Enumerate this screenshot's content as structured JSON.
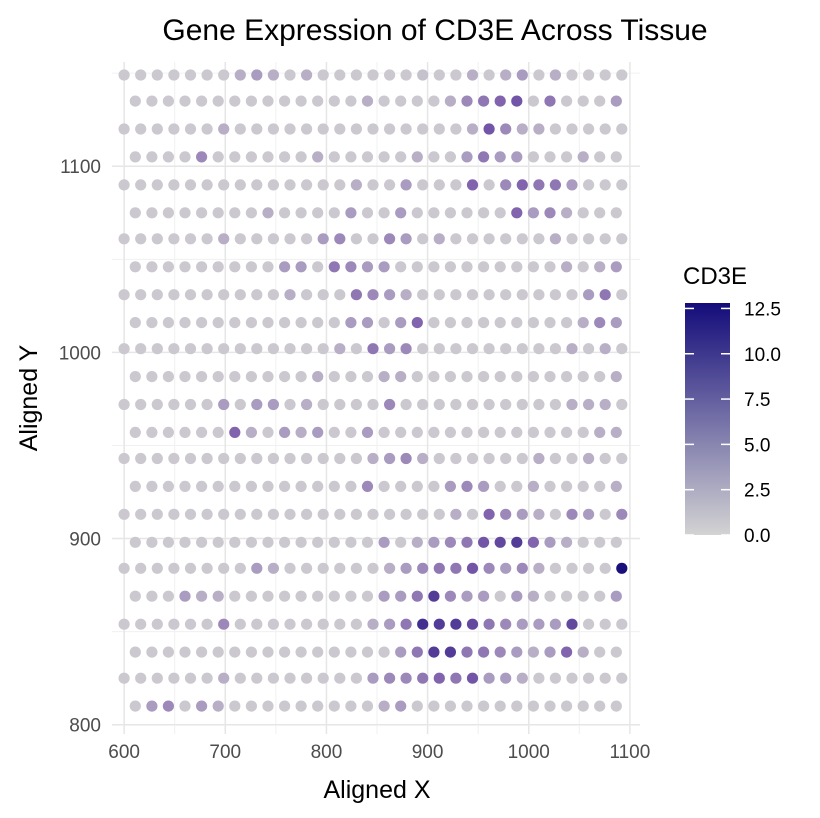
{
  "chart_data": {
    "type": "scatter",
    "title": "Gene Expression of CD3E Across Tissue",
    "xlabel": "Aligned X",
    "ylabel": "Aligned Y",
    "xlim": [
      588,
      1110
    ],
    "ylim": [
      795,
      1156
    ],
    "xticks": [
      600,
      700,
      800,
      900,
      1000,
      1100
    ],
    "yticks": [
      800,
      900,
      1000,
      1100
    ],
    "xtick_labels": [
      "600",
      "700",
      "800",
      "900",
      "1000",
      "1100"
    ],
    "ytick_labels": [
      "800",
      "900",
      "1000",
      "1100"
    ],
    "grid": true,
    "legend": {
      "title": "CD3E",
      "position": "right",
      "min": 0,
      "max": 12.8,
      "ticks": [
        0,
        2.5,
        5,
        7.5,
        10,
        12.5
      ],
      "tick_labels": [
        "0.0",
        "2.5",
        "5.0",
        "7.5",
        "10.0",
        "12.5"
      ],
      "color_low": "#d3d3d3",
      "color_high": "#140c7a"
    },
    "layout": {
      "rows": [
        1149,
        1135,
        1120,
        1105,
        1090,
        1075,
        1061,
        1046,
        1031,
        1016,
        1002,
        987,
        972,
        957,
        943,
        928,
        913,
        898,
        884,
        869,
        854,
        839,
        825,
        810
      ],
      "x_start_even": 600,
      "x_start_odd": 611,
      "x_step": 16.4,
      "count": 31
    },
    "highlights": [
      {
        "x": 736,
        "y": 1149,
        "v": 3
      },
      {
        "x": 718,
        "y": 1149,
        "v": 2
      },
      {
        "x": 752,
        "y": 1149,
        "v": 2
      },
      {
        "x": 785,
        "y": 1149,
        "v": 2
      },
      {
        "x": 900,
        "y": 1149,
        "v": 1
      },
      {
        "x": 948,
        "y": 1149,
        "v": 2
      },
      {
        "x": 981,
        "y": 1149,
        "v": 2
      },
      {
        "x": 997,
        "y": 1149,
        "v": 3
      },
      {
        "x": 1030,
        "y": 1149,
        "v": 2
      },
      {
        "x": 940,
        "y": 1135,
        "v": 4
      },
      {
        "x": 956,
        "y": 1135,
        "v": 5
      },
      {
        "x": 973,
        "y": 1135,
        "v": 6
      },
      {
        "x": 989,
        "y": 1135,
        "v": 7
      },
      {
        "x": 1022,
        "y": 1135,
        "v": 5
      },
      {
        "x": 1088,
        "y": 1135,
        "v": 3
      },
      {
        "x": 924,
        "y": 1135,
        "v": 2
      },
      {
        "x": 841,
        "y": 1135,
        "v": 2
      },
      {
        "x": 957,
        "y": 1120,
        "v": 7
      },
      {
        "x": 973,
        "y": 1120,
        "v": 4
      },
      {
        "x": 941,
        "y": 1120,
        "v": 2
      },
      {
        "x": 990,
        "y": 1120,
        "v": 2
      },
      {
        "x": 1006,
        "y": 1120,
        "v": 2
      },
      {
        "x": 693,
        "y": 1120,
        "v": 2
      },
      {
        "x": 676,
        "y": 1105,
        "v": 4
      },
      {
        "x": 948,
        "y": 1105,
        "v": 5
      },
      {
        "x": 932,
        "y": 1105,
        "v": 3
      },
      {
        "x": 965,
        "y": 1105,
        "v": 3
      },
      {
        "x": 981,
        "y": 1105,
        "v": 3
      },
      {
        "x": 1047,
        "y": 1105,
        "v": 2
      },
      {
        "x": 785,
        "y": 1105,
        "v": 2
      },
      {
        "x": 882,
        "y": 1105,
        "v": 2
      },
      {
        "x": 940,
        "y": 1090,
        "v": 6
      },
      {
        "x": 989,
        "y": 1090,
        "v": 6
      },
      {
        "x": 1006,
        "y": 1090,
        "v": 5
      },
      {
        "x": 1022,
        "y": 1090,
        "v": 5
      },
      {
        "x": 973,
        "y": 1090,
        "v": 4
      },
      {
        "x": 874,
        "y": 1090,
        "v": 3
      },
      {
        "x": 1038,
        "y": 1090,
        "v": 3
      },
      {
        "x": 825,
        "y": 1090,
        "v": 2
      },
      {
        "x": 981,
        "y": 1075,
        "v": 6
      },
      {
        "x": 1014,
        "y": 1075,
        "v": 4
      },
      {
        "x": 998,
        "y": 1075,
        "v": 3
      },
      {
        "x": 817,
        "y": 1075,
        "v": 3
      },
      {
        "x": 866,
        "y": 1075,
        "v": 3
      },
      {
        "x": 735,
        "y": 1075,
        "v": 2
      },
      {
        "x": 1030,
        "y": 1075,
        "v": 2
      },
      {
        "x": 817,
        "y": 1061,
        "v": 4
      },
      {
        "x": 866,
        "y": 1061,
        "v": 4
      },
      {
        "x": 882,
        "y": 1061,
        "v": 3
      },
      {
        "x": 800,
        "y": 1061,
        "v": 3
      },
      {
        "x": 915,
        "y": 1061,
        "v": 2
      },
      {
        "x": 1031,
        "y": 1061,
        "v": 2
      },
      {
        "x": 702,
        "y": 1061,
        "v": 2
      },
      {
        "x": 808,
        "y": 1046,
        "v": 5
      },
      {
        "x": 825,
        "y": 1046,
        "v": 4
      },
      {
        "x": 759,
        "y": 1046,
        "v": 3
      },
      {
        "x": 776,
        "y": 1046,
        "v": 3
      },
      {
        "x": 842,
        "y": 1046,
        "v": 3
      },
      {
        "x": 858,
        "y": 1046,
        "v": 3
      },
      {
        "x": 1088,
        "y": 1046,
        "v": 3
      },
      {
        "x": 1039,
        "y": 1046,
        "v": 2
      },
      {
        "x": 1071,
        "y": 1046,
        "v": 2
      },
      {
        "x": 825,
        "y": 1031,
        "v": 5
      },
      {
        "x": 1072,
        "y": 1031,
        "v": 5
      },
      {
        "x": 842,
        "y": 1031,
        "v": 4
      },
      {
        "x": 858,
        "y": 1031,
        "v": 3
      },
      {
        "x": 759,
        "y": 1031,
        "v": 2
      },
      {
        "x": 874,
        "y": 1031,
        "v": 2
      },
      {
        "x": 1056,
        "y": 1031,
        "v": 3
      },
      {
        "x": 883,
        "y": 1016,
        "v": 6
      },
      {
        "x": 1071,
        "y": 1016,
        "v": 4
      },
      {
        "x": 1088,
        "y": 1016,
        "v": 3
      },
      {
        "x": 825,
        "y": 1016,
        "v": 3
      },
      {
        "x": 842,
        "y": 1016,
        "v": 3
      },
      {
        "x": 866,
        "y": 1016,
        "v": 3
      },
      {
        "x": 1055,
        "y": 1016,
        "v": 2
      },
      {
        "x": 850,
        "y": 1002,
        "v": 5
      },
      {
        "x": 883,
        "y": 1002,
        "v": 4
      },
      {
        "x": 867,
        "y": 1002,
        "v": 3
      },
      {
        "x": 817,
        "y": 1002,
        "v": 2
      },
      {
        "x": 1072,
        "y": 1002,
        "v": 2
      },
      {
        "x": 1039,
        "y": 1002,
        "v": 2
      },
      {
        "x": 858,
        "y": 987,
        "v": 2
      },
      {
        "x": 874,
        "y": 987,
        "v": 2
      },
      {
        "x": 793,
        "y": 987,
        "v": 2
      },
      {
        "x": 1088,
        "y": 987,
        "v": 2
      },
      {
        "x": 702,
        "y": 972,
        "v": 3
      },
      {
        "x": 735,
        "y": 972,
        "v": 3
      },
      {
        "x": 751,
        "y": 972,
        "v": 3
      },
      {
        "x": 867,
        "y": 972,
        "v": 4
      },
      {
        "x": 785,
        "y": 972,
        "v": 2
      },
      {
        "x": 1048,
        "y": 972,
        "v": 2
      },
      {
        "x": 1064,
        "y": 972,
        "v": 2
      },
      {
        "x": 1081,
        "y": 972,
        "v": 2
      },
      {
        "x": 711,
        "y": 957,
        "v": 6
      },
      {
        "x": 760,
        "y": 957,
        "v": 3
      },
      {
        "x": 793,
        "y": 957,
        "v": 3
      },
      {
        "x": 842,
        "y": 957,
        "v": 3
      },
      {
        "x": 727,
        "y": 957,
        "v": 2
      },
      {
        "x": 777,
        "y": 957,
        "v": 2
      },
      {
        "x": 1072,
        "y": 957,
        "v": 2
      },
      {
        "x": 1088,
        "y": 957,
        "v": 2
      },
      {
        "x": 883,
        "y": 943,
        "v": 4
      },
      {
        "x": 866,
        "y": 943,
        "v": 3
      },
      {
        "x": 900,
        "y": 943,
        "v": 2
      },
      {
        "x": 850,
        "y": 943,
        "v": 2
      },
      {
        "x": 1014,
        "y": 943,
        "v": 2
      },
      {
        "x": 1064,
        "y": 943,
        "v": 2
      },
      {
        "x": 842,
        "y": 928,
        "v": 4
      },
      {
        "x": 941,
        "y": 928,
        "v": 4
      },
      {
        "x": 924,
        "y": 928,
        "v": 3
      },
      {
        "x": 957,
        "y": 928,
        "v": 3
      },
      {
        "x": 1006,
        "y": 928,
        "v": 2
      },
      {
        "x": 1089,
        "y": 928,
        "v": 2
      },
      {
        "x": 957,
        "y": 913,
        "v": 6
      },
      {
        "x": 973,
        "y": 913,
        "v": 4
      },
      {
        "x": 1039,
        "y": 913,
        "v": 4
      },
      {
        "x": 1055,
        "y": 913,
        "v": 3
      },
      {
        "x": 1088,
        "y": 913,
        "v": 4
      },
      {
        "x": 990,
        "y": 913,
        "v": 3
      },
      {
        "x": 1006,
        "y": 913,
        "v": 2
      },
      {
        "x": 924,
        "y": 913,
        "v": 2
      },
      {
        "x": 957,
        "y": 898,
        "v": 7
      },
      {
        "x": 973,
        "y": 898,
        "v": 8
      },
      {
        "x": 989,
        "y": 898,
        "v": 9
      },
      {
        "x": 1006,
        "y": 898,
        "v": 6
      },
      {
        "x": 940,
        "y": 898,
        "v": 5
      },
      {
        "x": 924,
        "y": 898,
        "v": 4
      },
      {
        "x": 907,
        "y": 898,
        "v": 3
      },
      {
        "x": 858,
        "y": 898,
        "v": 3
      },
      {
        "x": 891,
        "y": 898,
        "v": 2
      },
      {
        "x": 1022,
        "y": 898,
        "v": 3
      },
      {
        "x": 1039,
        "y": 898,
        "v": 2
      },
      {
        "x": 1088,
        "y": 884,
        "v": 12.5
      },
      {
        "x": 940,
        "y": 884,
        "v": 7
      },
      {
        "x": 907,
        "y": 884,
        "v": 5
      },
      {
        "x": 924,
        "y": 884,
        "v": 5
      },
      {
        "x": 891,
        "y": 884,
        "v": 4
      },
      {
        "x": 874,
        "y": 884,
        "v": 3
      },
      {
        "x": 957,
        "y": 884,
        "v": 4
      },
      {
        "x": 973,
        "y": 884,
        "v": 3
      },
      {
        "x": 989,
        "y": 884,
        "v": 4
      },
      {
        "x": 727,
        "y": 884,
        "v": 3
      },
      {
        "x": 743,
        "y": 884,
        "v": 2
      },
      {
        "x": 858,
        "y": 884,
        "v": 2
      },
      {
        "x": 1006,
        "y": 884,
        "v": 2
      },
      {
        "x": 900,
        "y": 869,
        "v": 9
      },
      {
        "x": 883,
        "y": 869,
        "v": 5
      },
      {
        "x": 916,
        "y": 869,
        "v": 4
      },
      {
        "x": 867,
        "y": 869,
        "v": 3
      },
      {
        "x": 850,
        "y": 869,
        "v": 3
      },
      {
        "x": 933,
        "y": 869,
        "v": 3
      },
      {
        "x": 949,
        "y": 869,
        "v": 3
      },
      {
        "x": 982,
        "y": 869,
        "v": 3
      },
      {
        "x": 998,
        "y": 869,
        "v": 2
      },
      {
        "x": 1081,
        "y": 869,
        "v": 3
      },
      {
        "x": 668,
        "y": 869,
        "v": 3
      },
      {
        "x": 684,
        "y": 869,
        "v": 2
      },
      {
        "x": 701,
        "y": 869,
        "v": 2
      },
      {
        "x": 891,
        "y": 854,
        "v": 10
      },
      {
        "x": 907,
        "y": 854,
        "v": 9
      },
      {
        "x": 924,
        "y": 854,
        "v": 9
      },
      {
        "x": 940,
        "y": 854,
        "v": 8
      },
      {
        "x": 874,
        "y": 854,
        "v": 5
      },
      {
        "x": 957,
        "y": 854,
        "v": 5
      },
      {
        "x": 973,
        "y": 854,
        "v": 4
      },
      {
        "x": 1039,
        "y": 854,
        "v": 8
      },
      {
        "x": 1022,
        "y": 854,
        "v": 3
      },
      {
        "x": 1006,
        "y": 854,
        "v": 3
      },
      {
        "x": 989,
        "y": 854,
        "v": 3
      },
      {
        "x": 858,
        "y": 854,
        "v": 3
      },
      {
        "x": 842,
        "y": 854,
        "v": 2
      },
      {
        "x": 694,
        "y": 854,
        "v": 4
      },
      {
        "x": 900,
        "y": 839,
        "v": 9
      },
      {
        "x": 916,
        "y": 839,
        "v": 9
      },
      {
        "x": 883,
        "y": 839,
        "v": 5
      },
      {
        "x": 933,
        "y": 839,
        "v": 5
      },
      {
        "x": 949,
        "y": 839,
        "v": 5
      },
      {
        "x": 867,
        "y": 839,
        "v": 3
      },
      {
        "x": 965,
        "y": 839,
        "v": 4
      },
      {
        "x": 982,
        "y": 839,
        "v": 3
      },
      {
        "x": 1031,
        "y": 839,
        "v": 6
      },
      {
        "x": 1014,
        "y": 839,
        "v": 3
      },
      {
        "x": 998,
        "y": 839,
        "v": 2
      },
      {
        "x": 1047,
        "y": 839,
        "v": 2
      },
      {
        "x": 940,
        "y": 825,
        "v": 7
      },
      {
        "x": 907,
        "y": 825,
        "v": 6
      },
      {
        "x": 891,
        "y": 825,
        "v": 5
      },
      {
        "x": 924,
        "y": 825,
        "v": 5
      },
      {
        "x": 874,
        "y": 825,
        "v": 4
      },
      {
        "x": 858,
        "y": 825,
        "v": 4
      },
      {
        "x": 842,
        "y": 825,
        "v": 3
      },
      {
        "x": 957,
        "y": 825,
        "v": 3
      },
      {
        "x": 973,
        "y": 825,
        "v": 3
      },
      {
        "x": 989,
        "y": 825,
        "v": 2
      },
      {
        "x": 694,
        "y": 825,
        "v": 2
      },
      {
        "x": 627,
        "y": 810,
        "v": 3
      },
      {
        "x": 644,
        "y": 810,
        "v": 4
      },
      {
        "x": 677,
        "y": 810,
        "v": 3
      },
      {
        "x": 693,
        "y": 810,
        "v": 2
      },
      {
        "x": 874,
        "y": 810,
        "v": 3
      },
      {
        "x": 858,
        "y": 810,
        "v": 2
      }
    ]
  }
}
